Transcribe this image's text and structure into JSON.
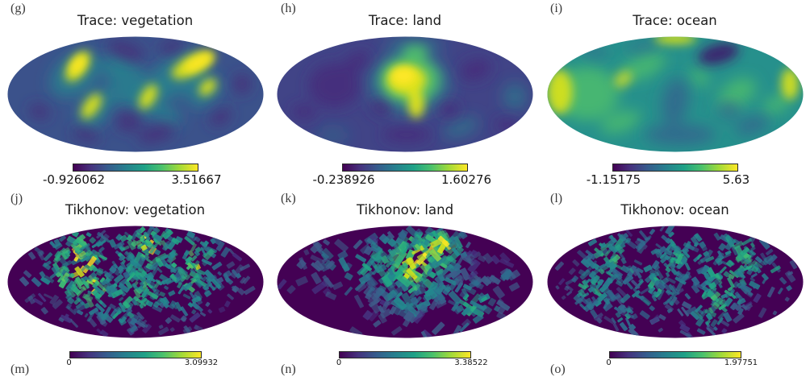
{
  "figure": {
    "colormap": {
      "name": "viridis",
      "stops": [
        "#440154",
        "#46327e",
        "#365c8d",
        "#277f8e",
        "#1fa187",
        "#4ac16d",
        "#a0da39",
        "#fde725"
      ]
    },
    "rows": [
      {
        "panels": [
          {
            "corner_label": "(g)",
            "title": "Trace: vegetation",
            "cbar": {
              "min_label": "-0.926062",
              "max_label": "3.51667"
            }
          },
          {
            "corner_label": "(h)",
            "title": "Trace: land",
            "cbar": {
              "min_label": "-0.238926",
              "max_label": "1.60276"
            }
          },
          {
            "corner_label": "(i)",
            "title": "Trace: ocean",
            "cbar": {
              "min_label": "-1.15175",
              "max_label": "5.63"
            }
          }
        ]
      },
      {
        "panels": [
          {
            "corner_label": "(j)",
            "title": "Tikhonov: vegetation",
            "cbar": {
              "min_label": "0",
              "max_label": "3.09932"
            },
            "footer_label": "(m)"
          },
          {
            "corner_label": "(k)",
            "title": "Tikhonov: land",
            "cbar": {
              "min_label": "0",
              "max_label": "3.38522"
            },
            "footer_label": "(n)"
          },
          {
            "corner_label": "(l)",
            "title": "Tikhonov: ocean",
            "cbar": {
              "min_label": "0",
              "max_label": "1.97751"
            },
            "footer_label": "(o)"
          }
        ]
      }
    ]
  },
  "chart_data": [
    {
      "type": "heatmap",
      "projection": "mollweide",
      "panel_label": "(g)",
      "title": "Trace: vegetation",
      "colormap": "viridis",
      "colorbar": {
        "min": -0.926062,
        "max": 3.51667
      }
    },
    {
      "type": "heatmap",
      "projection": "mollweide",
      "panel_label": "(h)",
      "title": "Trace: land",
      "colormap": "viridis",
      "colorbar": {
        "min": -0.238926,
        "max": 1.60276
      }
    },
    {
      "type": "heatmap",
      "projection": "mollweide",
      "panel_label": "(i)",
      "title": "Trace: ocean",
      "colormap": "viridis",
      "colorbar": {
        "min": -1.15175,
        "max": 5.63
      }
    },
    {
      "type": "heatmap",
      "projection": "mollweide",
      "panel_label": "(j)",
      "title": "Tikhonov: vegetation",
      "colormap": "viridis",
      "colorbar": {
        "min": 0,
        "max": 3.09932
      },
      "bottom_label": "(m)"
    },
    {
      "type": "heatmap",
      "projection": "mollweide",
      "panel_label": "(k)",
      "title": "Tikhonov: land",
      "colormap": "viridis",
      "colorbar": {
        "min": 0,
        "max": 3.38522
      },
      "bottom_label": "(n)"
    },
    {
      "type": "heatmap",
      "projection": "mollweide",
      "panel_label": "(l)",
      "title": "Tikhonov: ocean",
      "colormap": "viridis",
      "colorbar": {
        "min": 0,
        "max": 1.97751
      },
      "bottom_label": "(o)"
    }
  ]
}
